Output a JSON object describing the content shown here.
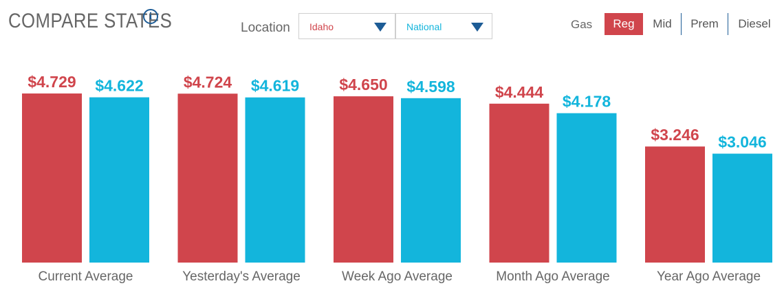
{
  "header": {
    "title": "COMPARE STATES",
    "info_icon": "info-icon"
  },
  "location": {
    "label": "Location",
    "state": "Idaho",
    "national": "National"
  },
  "gas": {
    "label": "Gas",
    "options": [
      "Reg",
      "Mid",
      "Prem",
      "Diesel"
    ],
    "selected": "Reg"
  },
  "colors": {
    "state": "#d0454c",
    "national": "#13b5dc",
    "accent": "#1d5c96"
  },
  "chart_data": {
    "type": "bar",
    "categories": [
      "Current Average",
      "Yesterday's Average",
      "Week Ago Average",
      "Month Ago Average",
      "Year Ago Average"
    ],
    "series": [
      {
        "name": "Idaho",
        "values": [
          4.729,
          4.724,
          4.65,
          4.444,
          3.246
        ],
        "labels": [
          "$4.729",
          "$4.724",
          "$4.650",
          "$4.444",
          "$3.246"
        ]
      },
      {
        "name": "National",
        "values": [
          4.622,
          4.619,
          4.598,
          4.178,
          3.046
        ],
        "labels": [
          "$4.622",
          "$4.619",
          "$4.598",
          "$4.178",
          "$3.046"
        ]
      }
    ],
    "ylim": [
      0,
      4.729
    ],
    "grid": false,
    "legend": "none"
  }
}
